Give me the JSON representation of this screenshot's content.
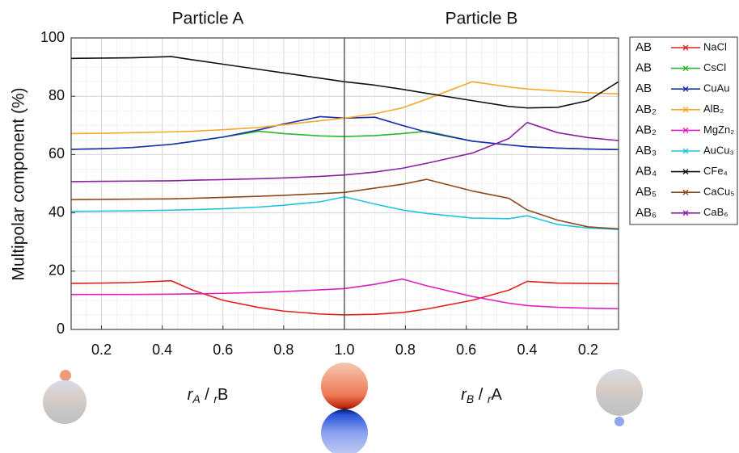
{
  "chart_data": [
    {
      "type": "line",
      "title": "Particle A",
      "ylabel": "Multipolar component (%)",
      "xlabel": [
        "r",
        "A",
        " / ",
        "r",
        "B"
      ],
      "xlim": [
        0.1,
        1.0
      ],
      "xticks": [
        0.2,
        0.4,
        0.6,
        0.8,
        {
          "value": 1,
          "label": "1.0"
        }
      ],
      "ylim": [
        0,
        100
      ],
      "yticks": [
        0,
        20,
        40,
        60,
        80,
        100
      ],
      "grid": true,
      "minor_grid": true,
      "legend": "right",
      "x": [
        0.1,
        0.2,
        0.3,
        0.43,
        0.5,
        0.6,
        0.72,
        0.8,
        0.92,
        1.0
      ],
      "series": [
        {
          "structure": "AB",
          "name": "NaCl",
          "color": "#e02020",
          "values": [
            15.8,
            15.9,
            16.1,
            16.7,
            13.5,
            10,
            7.5,
            6.3,
            5.3,
            5.0
          ]
        },
        {
          "structure": "AB",
          "name": "CsCl",
          "color": "#2ab52a",
          "values": [
            61.8,
            62,
            62.4,
            63.5,
            64.5,
            66,
            68,
            67.2,
            66.4,
            66.2
          ]
        },
        {
          "structure": "AB",
          "name": "CuAu",
          "color": "#1a2db0",
          "values": [
            61.8,
            62,
            62.4,
            63.5,
            64.5,
            66,
            68.5,
            70.5,
            73,
            72.5
          ]
        },
        {
          "structure": "AB₂",
          "name": "AlB₂",
          "color": "#f6a82a",
          "values": [
            67.2,
            67.3,
            67.5,
            67.8,
            68,
            68.5,
            69.3,
            70.2,
            71.6,
            72.5
          ]
        },
        {
          "structure": "AB₂",
          "name": "MgZn₂",
          "color": "#e020c0",
          "values": [
            12,
            12,
            12,
            12.1,
            12.2,
            12.4,
            12.7,
            13,
            13.6,
            14
          ]
        },
        {
          "structure": "AB₃",
          "name": "AuCu₃",
          "color": "#1ec4de",
          "values": [
            40.5,
            40.6,
            40.7,
            40.9,
            41.1,
            41.4,
            42,
            42.6,
            43.8,
            45.5
          ]
        },
        {
          "structure": "AB₄",
          "name": "CFe₄",
          "color": "#111111",
          "values": [
            93,
            93.1,
            93.2,
            93.6,
            92.5,
            91,
            89.2,
            88,
            86.2,
            85
          ]
        },
        {
          "structure": "AB₅",
          "name": "CaCu₅",
          "color": "#8b4a1c",
          "values": [
            44.5,
            44.6,
            44.7,
            44.8,
            45,
            45.3,
            45.7,
            46,
            46.6,
            47
          ]
        },
        {
          "structure": "AB₆",
          "name": "CaB₆",
          "color": "#8a22a0",
          "values": [
            50.7,
            50.8,
            50.9,
            51,
            51.2,
            51.4,
            51.7,
            52,
            52.5,
            53
          ]
        }
      ]
    },
    {
      "type": "line",
      "title": "Particle B",
      "xlabel": [
        "r",
        "B",
        " / ",
        "r",
        "A"
      ],
      "xlim": [
        1.0,
        0.1
      ],
      "xticks": [
        0.8,
        0.6,
        0.4,
        0.2
      ],
      "ylim": [
        0,
        100
      ],
      "grid": true,
      "minor_grid": true,
      "x": [
        1.0,
        0.9,
        0.81,
        0.73,
        0.58,
        0.46,
        0.4,
        0.3,
        0.2,
        0.1
      ],
      "series": [
        {
          "name": "NaCl",
          "color": "#e02020",
          "values": [
            5,
            5.2,
            5.8,
            7,
            10,
            13.5,
            16.5,
            15.9,
            15.8,
            15.7
          ]
        },
        {
          "name": "CsCl",
          "color": "#2ab52a",
          "values": [
            66.2,
            66.5,
            67.2,
            68,
            64.6,
            63.3,
            62.7,
            62.2,
            61.9,
            61.7
          ]
        },
        {
          "name": "CuAu",
          "color": "#1a2db0",
          "values": [
            72.5,
            72.8,
            70,
            67.7,
            64.6,
            63.3,
            62.7,
            62.2,
            61.9,
            61.7
          ]
        },
        {
          "name": "AlB₂",
          "color": "#f6a82a",
          "values": [
            72.5,
            74,
            76,
            79,
            85,
            83.2,
            82.5,
            81.8,
            81.2,
            80.8
          ]
        },
        {
          "name": "MgZn₂",
          "color": "#e020c0",
          "values": [
            14,
            15.5,
            17.3,
            15,
            11.3,
            9,
            8.2,
            7.6,
            7.3,
            7.1
          ]
        },
        {
          "name": "AuCu₃",
          "color": "#1ec4de",
          "values": [
            45.5,
            43,
            41,
            39.8,
            38.2,
            38,
            39,
            36,
            34.8,
            34.3
          ]
        },
        {
          "name": "CFe₄",
          "color": "#111111",
          "values": [
            85,
            83.8,
            82.4,
            81,
            78.5,
            76.5,
            76,
            76.2,
            78.5,
            85
          ]
        },
        {
          "name": "CaCu₅",
          "color": "#8b4a1c",
          "values": [
            47,
            48.5,
            49.8,
            51.5,
            47.5,
            45,
            41,
            37.5,
            35.2,
            34.5
          ]
        },
        {
          "name": "CaB₆",
          "color": "#8a22a0",
          "values": [
            53,
            54,
            55.3,
            57,
            60.5,
            65.5,
            71,
            67.5,
            65.8,
            64.8
          ]
        }
      ]
    }
  ]
}
